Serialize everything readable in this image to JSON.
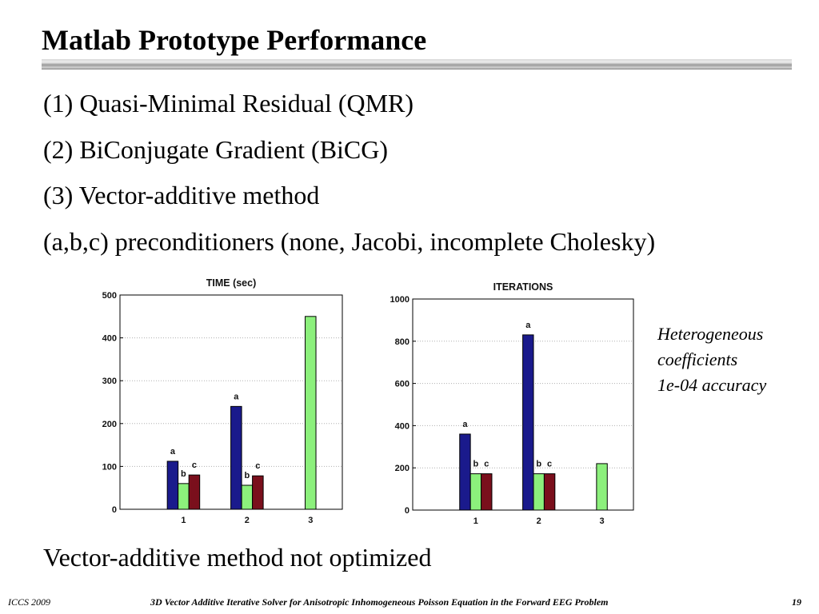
{
  "slide": {
    "title": "Matlab Prototype Performance",
    "bullets": [
      "(1) Quasi-Minimal Residual (QMR)",
      "(2) BiConjugate Gradient (BiCG)",
      "(3) Vector-additive method",
      "(a,b,c) preconditioners (none, Jacobi, incomplete Cholesky)"
    ],
    "side_note": [
      "Heterogeneous",
      "coefficients",
      "1e-04 accuracy"
    ],
    "conclusion": "Vector-additive method not optimized",
    "footer": {
      "left": "ICCS 2009",
      "center": "3D Vector Additive Iterative Solver for Anisotropic Inhomogeneous Poisson Equation in the Forward EEG Problem",
      "right": "19"
    }
  },
  "colors": {
    "a": "#1a1a8c",
    "b": "#8cf07c",
    "c": "#7a0f1c",
    "grid": "#b0b0b0"
  },
  "chart_data": [
    {
      "type": "bar",
      "title": "TIME (sec)",
      "categories": [
        "1",
        "2",
        "3"
      ],
      "ylim": [
        0,
        500
      ],
      "yticks": [
        0,
        100,
        200,
        300,
        400,
        500
      ],
      "grid": true,
      "series": [
        {
          "label": "a",
          "values": [
            112,
            240,
            null
          ]
        },
        {
          "label": "b",
          "values": [
            60,
            56,
            450
          ]
        },
        {
          "label": "c",
          "values": [
            80,
            78,
            null
          ]
        }
      ]
    },
    {
      "type": "bar",
      "title": "ITERATIONS",
      "categories": [
        "1",
        "2",
        "3"
      ],
      "ylim": [
        0,
        1000
      ],
      "yticks": [
        0,
        200,
        400,
        600,
        800,
        1000
      ],
      "grid": true,
      "series": [
        {
          "label": "a",
          "values": [
            360,
            830,
            null
          ]
        },
        {
          "label": "b",
          "values": [
            172,
            172,
            220
          ]
        },
        {
          "label": "c",
          "values": [
            172,
            172,
            null
          ]
        }
      ]
    }
  ]
}
